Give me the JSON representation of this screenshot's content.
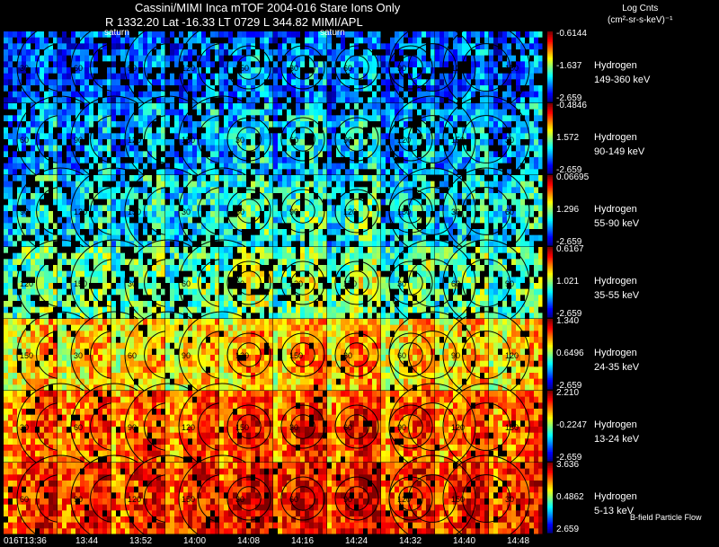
{
  "header": {
    "title": "Cassini/MIMI Inca mTOF  2004-016   Stare   Ions Only",
    "subtitle": "R       1332.20 Lat -16.33 LT 0729 L         344.82  MIMI/APL",
    "legend_title_line1": "Log Cnts",
    "legend_title_line2": "(cm²-sr-s-keV)⁻¹"
  },
  "footer": {
    "note": "B-field Particle Flow"
  },
  "saturn_labels": [
    "saturn",
    "saturn"
  ],
  "chart_data": {
    "type": "heatmap",
    "title": "Cassini/MIMI Inca mTOF  2004-016   Stare   Ions Only",
    "colorbar_label": "Log Cnts (cm²-sr-s-keV)⁻¹",
    "times": [
      "016T13:36",
      "13:44",
      "13:52",
      "14:00",
      "14:08",
      "14:16",
      "14:24",
      "14:32",
      "14:40",
      "14:48"
    ],
    "bands": [
      {
        "species": "Hydrogen",
        "energy": "149-360 keV",
        "cmax": "-0.6144",
        "cmid": "-1.637",
        "cmin": "-2.659",
        "level": 0.22
      },
      {
        "species": "Hydrogen",
        "energy": "90-149 keV",
        "cmax": "-0.4846",
        "cmid": "1.572",
        "cmin": "-2.659",
        "level": 0.3
      },
      {
        "species": "Hydrogen",
        "energy": "55-90 keV",
        "cmax": "0.06695",
        "cmid": "1.296",
        "cmin": "-2.659",
        "level": 0.38
      },
      {
        "species": "Hydrogen",
        "energy": "35-55 keV",
        "cmax": "0.6167",
        "cmid": "1.021",
        "cmin": "-2.659",
        "level": 0.48
      },
      {
        "species": "Hydrogen",
        "energy": "24-35 keV",
        "cmax": "1.340",
        "cmid": "0.6496",
        "cmin": "-2.659",
        "level": 0.66
      },
      {
        "species": "Hydrogen",
        "energy": "13-24 keV",
        "cmax": "2.210",
        "cmid": "-0.2247",
        "cmin": "-2.659",
        "level": 0.78
      },
      {
        "species": "Hydrogen",
        "energy": "5-13 keV",
        "cmax": "3.636",
        "cmid": "0.4862",
        "cmin": "2.659",
        "level": 0.84
      }
    ],
    "contour_labels": [
      "30",
      "60",
      "90",
      "120",
      "150"
    ]
  }
}
